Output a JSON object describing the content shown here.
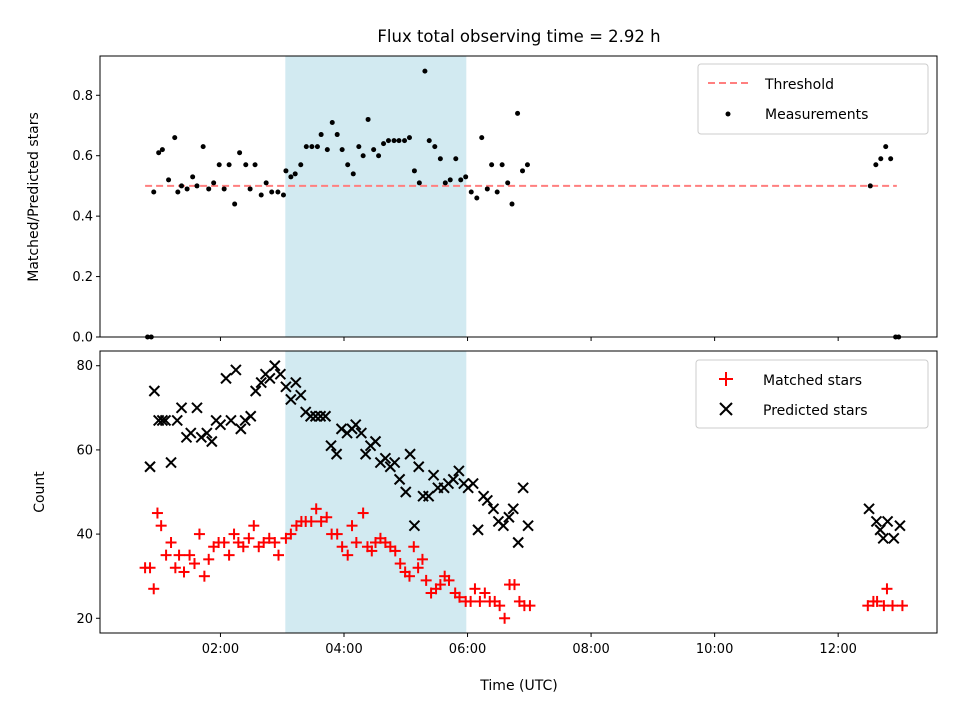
{
  "chart_data": [
    {
      "type": "scatter",
      "title": "Flux total observing time = 2.92 h",
      "ylabel": "Matched/Predicted stars",
      "xlabel": "",
      "x_unit": "hours UTC",
      "xlim": [
        0.05,
        13.6
      ],
      "ylim": [
        0.0,
        0.93
      ],
      "xticks": [
        2,
        4,
        6,
        8,
        10,
        12
      ],
      "yticks": [
        0.0,
        0.2,
        0.4,
        0.6,
        0.8
      ],
      "ytick_labels": [
        "0.0",
        "0.2",
        "0.4",
        "0.6",
        "0.8"
      ],
      "highlight_span": {
        "x": [
          3.05,
          5.98
        ],
        "color": "#add8e6"
      },
      "legend": {
        "placement": "top-right",
        "entries": [
          "Threshold",
          "Measurements"
        ]
      },
      "series": [
        {
          "name": "Threshold",
          "style": "dashed-line",
          "color": "#ff7f7f",
          "x": [
            0.78,
            12.95
          ],
          "y": [
            0.5,
            0.5
          ]
        },
        {
          "name": "Measurements",
          "style": "dot",
          "color": "#000000",
          "x": [
            0.82,
            0.88,
            0.92,
            1.0,
            1.06,
            1.16,
            1.26,
            1.31,
            1.37,
            1.46,
            1.55,
            1.62,
            1.72,
            1.81,
            1.89,
            1.98,
            2.06,
            2.14,
            2.23,
            2.31,
            2.41,
            2.48,
            2.56,
            2.66,
            2.74,
            2.83,
            2.93,
            3.02,
            3.06,
            3.14,
            3.21,
            3.3,
            3.39,
            3.48,
            3.57,
            3.63,
            3.73,
            3.81,
            3.89,
            3.97,
            4.06,
            4.15,
            4.24,
            4.31,
            4.39,
            4.48,
            4.56,
            4.64,
            4.72,
            4.81,
            4.89,
            4.98,
            5.06,
            5.14,
            5.22,
            5.31,
            5.38,
            5.47,
            5.56,
            5.64,
            5.72,
            5.81,
            5.89,
            5.97,
            6.06,
            6.15,
            6.23,
            6.32,
            6.39,
            6.48,
            6.56,
            6.65,
            6.72,
            6.81,
            6.89,
            6.97,
            12.52,
            12.61,
            12.69,
            12.77,
            12.85,
            12.93,
            12.98
          ],
          "y": [
            0.0,
            0.0,
            0.48,
            0.61,
            0.62,
            0.52,
            0.66,
            0.48,
            0.5,
            0.49,
            0.53,
            0.5,
            0.63,
            0.49,
            0.51,
            0.57,
            0.49,
            0.57,
            0.44,
            0.61,
            0.57,
            0.49,
            0.57,
            0.47,
            0.51,
            0.48,
            0.48,
            0.47,
            0.55,
            0.53,
            0.54,
            0.57,
            0.63,
            0.63,
            0.63,
            0.67,
            0.62,
            0.71,
            0.67,
            0.62,
            0.57,
            0.54,
            0.63,
            0.6,
            0.72,
            0.62,
            0.6,
            0.64,
            0.65,
            0.65,
            0.65,
            0.65,
            0.66,
            0.55,
            0.51,
            0.88,
            0.65,
            0.63,
            0.59,
            0.51,
            0.52,
            0.59,
            0.52,
            0.53,
            0.48,
            0.46,
            0.66,
            0.49,
            0.57,
            0.48,
            0.57,
            0.51,
            0.44,
            0.74,
            0.55,
            0.57,
            0.5,
            0.57,
            0.59,
            0.63,
            0.59,
            0.0,
            0.0
          ]
        }
      ]
    },
    {
      "type": "scatter",
      "title": "",
      "ylabel": "Count",
      "xlabel": "Time (UTC)",
      "x_unit": "hours UTC",
      "xlim": [
        0.05,
        13.6
      ],
      "ylim": [
        16.5,
        83.5
      ],
      "xticks": [
        2,
        4,
        6,
        8,
        10,
        12
      ],
      "xtick_labels": [
        "02:00",
        "04:00",
        "06:00",
        "08:00",
        "10:00",
        "12:00"
      ],
      "yticks": [
        20,
        40,
        60,
        80
      ],
      "ytick_labels": [
        "20",
        "40",
        "60",
        "80"
      ],
      "highlight_span": {
        "x": [
          3.05,
          5.98
        ],
        "color": "#add8e6"
      },
      "legend": {
        "placement": "top-right",
        "entries": [
          "Matched stars",
          "Predicted stars"
        ]
      },
      "series": [
        {
          "name": "Matched stars",
          "marker": "plus",
          "color": "#ff0000",
          "x": [
            0.78,
            0.86,
            0.92,
            0.98,
            1.04,
            1.12,
            1.2,
            1.27,
            1.33,
            1.41,
            1.5,
            1.58,
            1.66,
            1.74,
            1.81,
            1.89,
            1.97,
            2.06,
            2.14,
            2.22,
            2.29,
            2.37,
            2.46,
            2.54,
            2.62,
            2.7,
            2.79,
            2.88,
            2.94,
            3.06,
            3.14,
            3.23,
            3.31,
            3.38,
            3.47,
            3.55,
            3.63,
            3.72,
            3.8,
            3.89,
            3.97,
            4.06,
            4.13,
            4.2,
            4.31,
            4.38,
            4.45,
            4.51,
            4.59,
            4.67,
            4.75,
            4.83,
            4.91,
            4.99,
            5.06,
            5.13,
            5.2,
            5.27,
            5.33,
            5.41,
            5.49,
            5.56,
            5.63,
            5.7,
            5.8,
            5.87,
            5.97,
            6.05,
            6.12,
            6.2,
            6.28,
            6.36,
            6.44,
            6.52,
            6.6,
            6.68,
            6.76,
            6.84,
            6.92,
            7.01,
            12.48,
            12.57,
            12.63,
            12.74,
            12.79,
            12.88,
            13.04
          ],
          "y": [
            32,
            32,
            27,
            45,
            42,
            35,
            38,
            32,
            35,
            31,
            35,
            33,
            40,
            30,
            34,
            37,
            38,
            38,
            35,
            40,
            38,
            37,
            39,
            42,
            37,
            38,
            39,
            38,
            35,
            39,
            40,
            42,
            43,
            43,
            43,
            46,
            43,
            44,
            40,
            40,
            37,
            35,
            42,
            38,
            45,
            37,
            36,
            38,
            39,
            38,
            37,
            36,
            33,
            31,
            30,
            37,
            32,
            34,
            29,
            26,
            27,
            28,
            30,
            29,
            26,
            25,
            24,
            24,
            27,
            24,
            26,
            24,
            24,
            23,
            20,
            28,
            28,
            24,
            23,
            23,
            23,
            24,
            24,
            23,
            27,
            23,
            23
          ],
          "x_extra_note": ""
        },
        {
          "name": "Predicted stars",
          "marker": "x",
          "color": "#000000",
          "x": [
            0.86,
            0.93,
            1.0,
            1.06,
            1.11,
            1.2,
            1.3,
            1.37,
            1.45,
            1.52,
            1.62,
            1.69,
            1.78,
            1.86,
            1.93,
            2.0,
            2.09,
            2.17,
            2.25,
            2.33,
            2.4,
            2.49,
            2.57,
            2.66,
            2.73,
            2.8,
            2.88,
            2.97,
            3.06,
            3.14,
            3.22,
            3.3,
            3.38,
            3.46,
            3.54,
            3.62,
            3.7,
            3.79,
            3.88,
            3.96,
            4.05,
            4.13,
            4.19,
            4.28,
            4.35,
            4.43,
            4.51,
            4.59,
            4.67,
            4.75,
            4.82,
            4.9,
            5.0,
            5.07,
            5.14,
            5.21,
            5.28,
            5.37,
            5.45,
            5.52,
            5.62,
            5.69,
            5.77,
            5.86,
            5.94,
            6.01,
            6.09,
            6.17,
            6.26,
            6.32,
            6.42,
            6.5,
            6.58,
            6.67,
            6.74,
            6.82,
            6.9,
            6.98,
            12.5,
            12.62,
            12.68,
            12.73,
            12.8,
            12.9,
            13.0
          ],
          "y": [
            56,
            74,
            67,
            67,
            67,
            57,
            67,
            70,
            63,
            64,
            70,
            63,
            64,
            62,
            67,
            66,
            77,
            67,
            79,
            65,
            67,
            68,
            74,
            76,
            78,
            77,
            80,
            78,
            75,
            72,
            76,
            73,
            69,
            68,
            68,
            68,
            68,
            61,
            59,
            65,
            64,
            65,
            66,
            64,
            59,
            61,
            62,
            57,
            58,
            56,
            57,
            53,
            50,
            59,
            42,
            56,
            49,
            49,
            54,
            51,
            51,
            52,
            53,
            55,
            52,
            51,
            52,
            41,
            49,
            48,
            46,
            43,
            42,
            44,
            46,
            38,
            51,
            42,
            46,
            43,
            41,
            39,
            43,
            39,
            42
          ]
        }
      ]
    }
  ]
}
